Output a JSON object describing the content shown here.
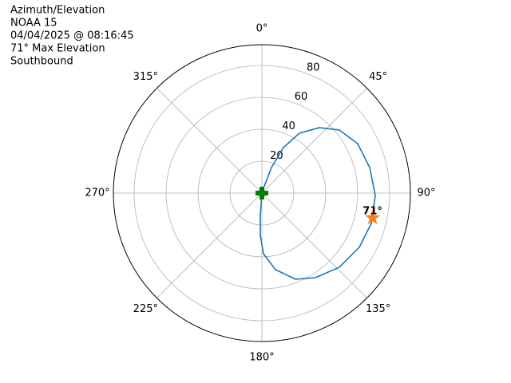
{
  "chart_data": {
    "type": "polar",
    "title_lines": [
      "Azimuth/Elevation",
      "NOAA 15",
      "04/04/2025 @ 08:16:45",
      "71° Max Elevation",
      "Southbound"
    ],
    "theta_direction": "clockwise",
    "theta_zero": "N",
    "xticks": [
      {
        "value": 0,
        "label": "0°"
      },
      {
        "value": 45,
        "label": "45°"
      },
      {
        "value": 90,
        "label": "90°"
      },
      {
        "value": 135,
        "label": "135°"
      },
      {
        "value": 180,
        "label": "180°"
      },
      {
        "value": 225,
        "label": "225°"
      },
      {
        "value": 270,
        "label": "270°"
      },
      {
        "value": 315,
        "label": "315°"
      }
    ],
    "ylim": [
      0,
      93
    ],
    "yticks": [
      20,
      40,
      60,
      80
    ],
    "grid": true,
    "series": [
      {
        "color": "#1f77b4",
        "theta": [
          18,
          20.6,
          25.3,
          32,
          41.3,
          50.8,
          62.7,
          76.7,
          91.2,
          105.5,
          119.1,
          133.8,
          147.7,
          158.7,
          170,
          178.5,
          182.2,
          184,
          0
        ],
        "values": [
          3.2,
          17.1,
          31.5,
          44.3,
          54.6,
          62.6,
          67.5,
          69.4,
          71,
          71.1,
          69.8,
          67.2,
          62.7,
          57.9,
          48.7,
          38,
          26.5,
          14,
          0
        ]
      }
    ],
    "start_marker": {
      "theta": 0,
      "value": 0,
      "color": "#008000"
    },
    "max_marker": {
      "theta": 102.6,
      "value": 71,
      "color": "#ff7f0e",
      "label": "71°"
    }
  }
}
